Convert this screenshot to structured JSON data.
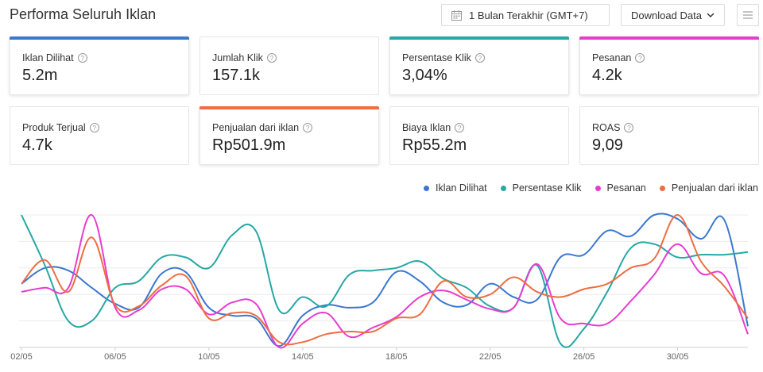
{
  "header": {
    "title": "Performa Seluruh Iklan",
    "date_range": "1 Bulan Terakhir (GMT+7)",
    "download_label": "Download Data"
  },
  "metrics": [
    {
      "label": "Iklan Dilihat",
      "value": "5.2m",
      "color": "#3a78d0",
      "selected": true
    },
    {
      "label": "Jumlah Klik",
      "value": "157.1k",
      "color": "",
      "selected": false
    },
    {
      "label": "Persentase Klik",
      "value": "3,04%",
      "color": "#26a8a5",
      "selected": true
    },
    {
      "label": "Pesanan",
      "value": "4.2k",
      "color": "#e83ccf",
      "selected": true
    },
    {
      "label": "Produk Terjual",
      "value": "4.7k",
      "color": "",
      "selected": false
    },
    {
      "label": "Penjualan dari iklan",
      "value": "Rp501.9m",
      "color": "#ee6d42",
      "selected": true
    },
    {
      "label": "Biaya Iklan",
      "value": "Rp55.2m",
      "color": "",
      "selected": false
    },
    {
      "label": "ROAS",
      "value": "9,09",
      "color": "",
      "selected": false
    }
  ],
  "chart_data": {
    "type": "line",
    "x_tick_labels": [
      "02/05",
      "06/05",
      "10/05",
      "14/05",
      "18/05",
      "22/05",
      "26/05",
      "30/05"
    ],
    "grid": true,
    "legend_position": "top-right",
    "y_range_note": "normalized per series 0-100 (no printed y-axis)",
    "x": [
      1,
      2,
      3,
      4,
      5,
      6,
      7,
      8,
      9,
      10,
      11,
      12,
      13,
      14,
      15,
      16,
      17,
      18,
      19,
      20,
      21,
      22,
      23,
      24,
      25,
      26,
      27,
      28,
      29,
      30,
      31,
      32
    ],
    "series": [
      {
        "name": "Iklan Dilihat",
        "color": "#3a78d0",
        "values": [
          48,
          60,
          58,
          45,
          33,
          30,
          56,
          57,
          30,
          24,
          22,
          1,
          24,
          32,
          30,
          34,
          57,
          50,
          34,
          32,
          48,
          38,
          36,
          68,
          70,
          88,
          84,
          100,
          97,
          82,
          96,
          16
        ]
      },
      {
        "name": "Persentase Klik",
        "color": "#26a8a5",
        "values": [
          100,
          62,
          20,
          20,
          45,
          50,
          68,
          68,
          60,
          85,
          88,
          28,
          38,
          31,
          55,
          58,
          60,
          65,
          52,
          45,
          31,
          30,
          62,
          3,
          14,
          42,
          75,
          78,
          68,
          70,
          70,
          72
        ]
      },
      {
        "name": "Pesanan",
        "color": "#e83ccf",
        "values": [
          42,
          45,
          45,
          100,
          30,
          28,
          44,
          44,
          25,
          34,
          33,
          0,
          18,
          26,
          8,
          15,
          23,
          38,
          43,
          36,
          29,
          30,
          63,
          22,
          18,
          18,
          35,
          55,
          78,
          56,
          54,
          10
        ]
      },
      {
        "name": "Penjualan dari iklan",
        "color": "#ee6d42",
        "values": [
          48,
          66,
          42,
          83,
          32,
          31,
          47,
          54,
          22,
          26,
          24,
          4,
          4,
          10,
          12,
          12,
          22,
          25,
          50,
          38,
          40,
          53,
          42,
          38,
          44,
          48,
          60,
          67,
          100,
          65,
          46,
          22
        ]
      }
    ]
  }
}
